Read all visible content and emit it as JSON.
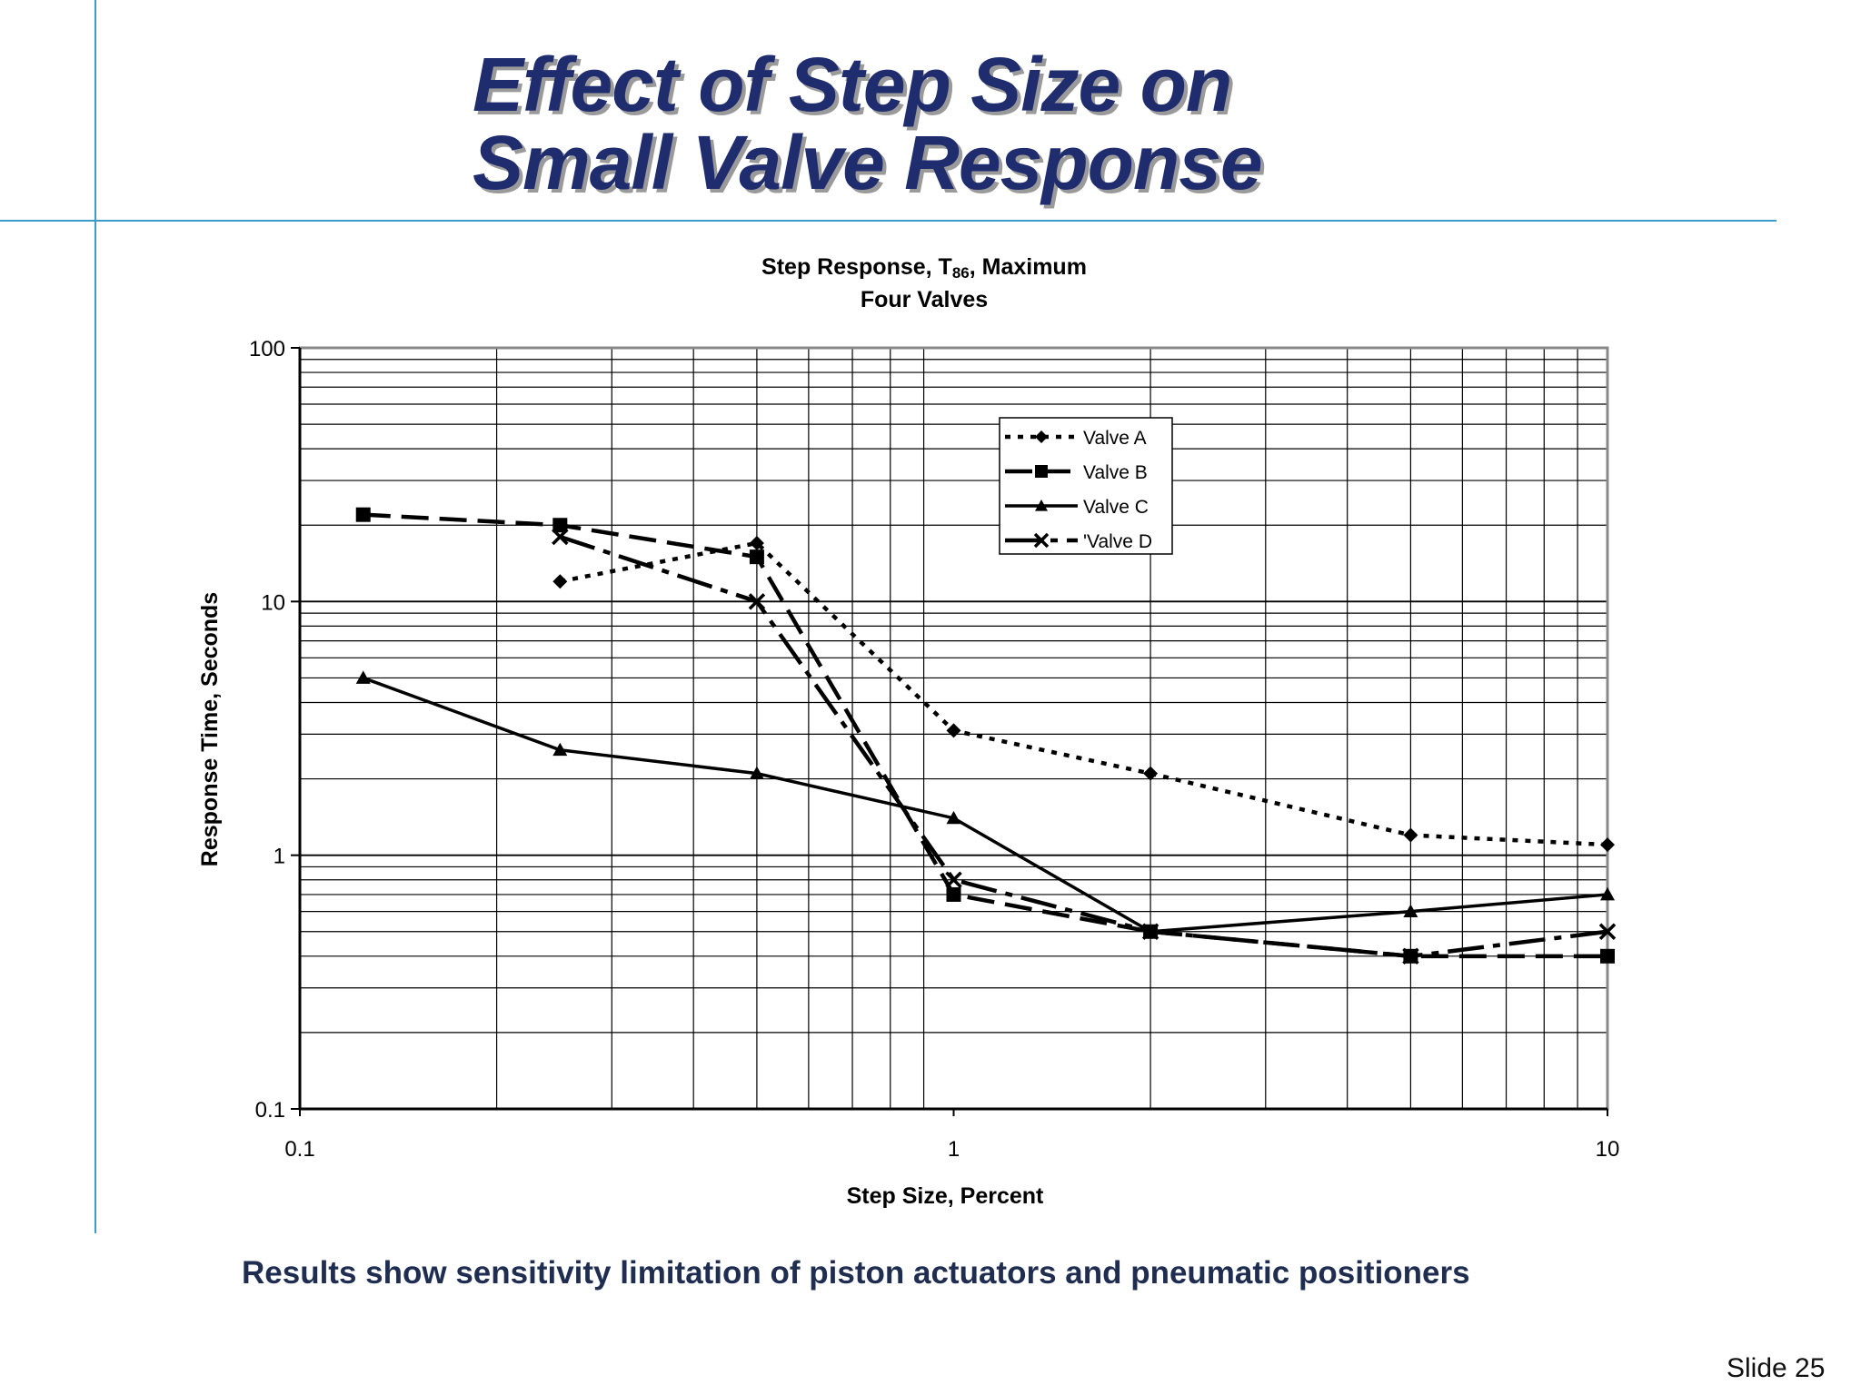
{
  "slide": {
    "title_line1": "Effect of Step Size on",
    "title_line2": "Small Valve Response",
    "caption": "Results show  sensitivity limitation of piston actuators and pneumatic positioners",
    "slide_number": "Slide 25"
  },
  "chart_data": {
    "type": "line",
    "title": "Step Response, T86, Maximum",
    "title_parts": {
      "pre": "Step Response, T",
      "sub": "86",
      "post": ", Maximum"
    },
    "subtitle": "Four Valves",
    "xlabel": "Step Size, Percent",
    "ylabel": "Response Time, Seconds",
    "x_scale": "log",
    "y_scale": "log",
    "xlim": [
      0.1,
      10
    ],
    "ylim": [
      0.1,
      100
    ],
    "x_ticks": [
      "0.1",
      "1",
      "10"
    ],
    "y_ticks": [
      "0.1",
      "1",
      "10",
      "100"
    ],
    "grid": true,
    "legend_position": "top-right-inner",
    "series": [
      {
        "name": "Valve A",
        "style": "dotted",
        "marker": "diamond",
        "x": [
          0.25,
          0.5,
          1,
          2,
          5,
          10
        ],
        "y": [
          12,
          17,
          3.1,
          2.1,
          1.2,
          1.1
        ]
      },
      {
        "name": "Valve B",
        "style": "dashed",
        "marker": "square",
        "x": [
          0.125,
          0.25,
          0.5,
          1,
          2,
          5,
          10
        ],
        "y": [
          22,
          20,
          15,
          0.7,
          0.5,
          0.4,
          0.4
        ]
      },
      {
        "name": "Valve C",
        "style": "solid",
        "marker": "triangle",
        "x": [
          0.125,
          0.25,
          0.5,
          1,
          2,
          5,
          10
        ],
        "y": [
          5,
          2.6,
          2.1,
          1.4,
          0.5,
          0.6,
          0.7
        ]
      },
      {
        "name": "'Valve D",
        "style": "dashdot",
        "marker": "x",
        "x": [
          0.25,
          0.5,
          1,
          2,
          5,
          10
        ],
        "y": [
          18,
          10,
          0.8,
          0.5,
          0.4,
          0.5
        ]
      }
    ]
  }
}
